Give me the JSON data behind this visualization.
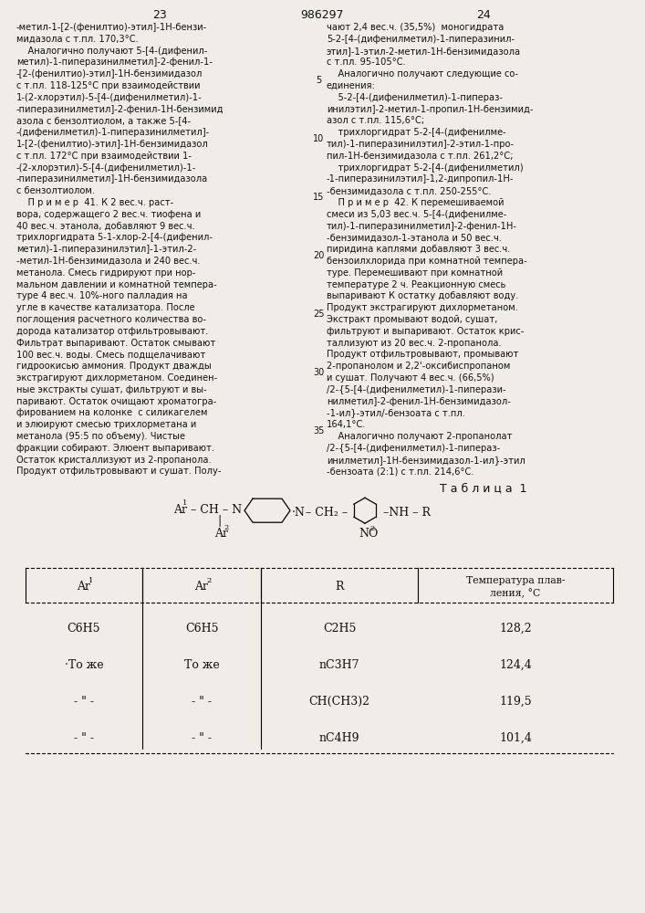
{
  "background_color": "#f0ede8",
  "page_number_left": "23",
  "page_number_center": "986297",
  "page_number_right": "24",
  "col1_lines": [
    "-метил-1-[2-(фенилтио)-этил]-1Н-бензи-",
    "мидазола с т.пл. 170,3°С.",
    "    Аналогично получают 5-[4-(дифенил-",
    "метил)-1-пиперазинилметил]-2-фенил-1-",
    "-[2-(фенилтио)-этил]-1Н-бензимидазол",
    "с т.пл. 118-125°С при взаимодействии",
    "1-(2-хлорэтил)-5-[4-(дифенилметил)-1-",
    "-пиперазинилметил]-2-фенил-1Н-бензимид",
    "азола с бензолтиолом, а также 5-[4-",
    "-(дифенилметил)-1-пиперазинилметил]-",
    "1-[2-(фенилтио)-этил]-1Н-бензимидазол",
    "с т.пл. 172°С при взаимодействии 1-",
    "-(2-хлорэтил)-5-[4-(дифенилметил)-1-",
    "-пиперазинилметил]-1Н-бензимидазола",
    "с бензолтиолом.",
    "    П р и м е р  41. К 2 вес.ч. раст-",
    "вора, содержащего 2 вес.ч. тиофена и",
    "40 вес.ч. этанола, добавляют 9 вес.ч.",
    "трихлоргидрата 5-1-хлор-2-[4-(дифенил-",
    "метил)-1-пиперазинилэтил]-1-этил-2-",
    "-метил-1Н-бензимидазола и 240 вес.ч.",
    "метанола. Смесь гидрируют при нор-",
    "мальном давлении и комнатной темпера-",
    "туре 4 вес.ч. 10%-ного палладия на",
    "угле в качестве катализатора. После",
    "поглощения расчетного количества во-",
    "дорода катализатор отфильтровывают.",
    "Фильтрат выпаривают. Остаток смывают",
    "100 вес.ч. воды. Смесь подщелачивают",
    "гидроокисью аммония. Продукт дважды",
    "экстрагируют дихлорметаном. Соединен-",
    "ные экстракты сушат, фильтруют и вы-",
    "паривают. Остаток очищают хроматогра-",
    "фированием на колонке  с силикагелем",
    "и элюируют смесью трихлорметана и",
    "метанола (95:5 по объему). Чистые",
    "фракции собирают. Элюент выпаривают.",
    "Остаток кристаллизуют из 2-пропанола.",
    "Продукт отфильтровывают и сушат. Полу-"
  ],
  "col2_lines": [
    "чают 2,4 вес.ч. (35,5%)  моногидрата",
    "5-2-[4-(дифенилметил)-1-пиперазинил-",
    "этил]-1-этил-2-метил-1Н-бензимидазола",
    "с т.пл. 95-105°С.",
    "    Аналогично получают следующие со-",
    "единения:",
    "    5-2-[4-(дифенилметил)-1-пипераз-",
    "инилэтил]-2-метил-1-пропил-1Н-бензимид-",
    "азол с т.пл. 115,6°С;",
    "    трихлоргидрат 5-2-[4-(дифенилме-",
    "тил)-1-пиперазинилэтил]-2-этил-1-про-",
    "пил-1Н-бензимидазола с т.пл. 261,2°С;",
    "    трихлоргидрат 5-2-[4-(дифенилметил)",
    "-1-пиперазинилэтил]-1,2-дипропил-1Н-",
    "-бензимидазола с т.пл. 250-255°С.",
    "    П р и м е р  42. К перемешиваемой",
    "смеси из 5,03 вес.ч. 5-[4-(дифенилме-",
    "тил)-1-пиперазинилметил]-2-фенил-1Н-",
    "-бензимидазол-1-этанола и 50 вес.ч.",
    "пиридина каплями добавляют 3 вес.ч.",
    "бензоилхлорида при комнатной темпера-",
    "туре. Перемешивают при комнатной",
    "температуре 2 ч. Реакционную смесь",
    "выпаривают К остатку добавляют воду.",
    "Продукт экстрагируют дихлорметаном.",
    "Экстракт промывают водой, сушат,",
    "фильтруют и выпаривают. Остаток крис-",
    "таллизуют из 20 вес.ч. 2-пропанола.",
    "Продукт отфильтровывают, промывают",
    "2-пропанолом и 2,2'-оксибиспропаном",
    "и сушат. Получают 4 вес.ч. (66,5%)",
    "/2-{5-[4-(дифенилметил)-1-пиперази-",
    "нилметил]-2-фенил-1Н-бензимидазол-",
    "-1-ил}-этил/-бензоата с т.пл.",
    "164,1°С.",
    "    Аналогично получают 2-пропанолат",
    "/2-{5-[4-(дифенилметил)-1-пипераз-",
    "инилметил]-1Н-бензимидазол-1-ил}-этил",
    "-бензоата (2:1) с т.пл. 214,6°С."
  ],
  "line_numbers": [
    5,
    10,
    15,
    20,
    25,
    30,
    35
  ],
  "table_title": "Т а б л и ц а  1",
  "table_rows": [
    [
      "C6H5",
      "C6H5",
      "C2H5",
      "128,2"
    ],
    [
      "·То же",
      "То же",
      "nC3H7",
      "124,4"
    ],
    [
      "- \" -",
      "- \" -",
      "CH(CH3)2",
      "119,5"
    ],
    [
      "- \" -",
      "- \" -",
      "nC4H9",
      "101,4"
    ]
  ]
}
